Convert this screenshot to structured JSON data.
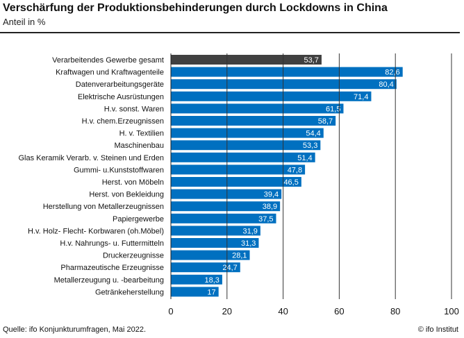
{
  "title": "Verschärfung der Produktionsbehinderungen durch Lockdowns in China",
  "subtitle": "Anteil in %",
  "source": "Quelle: ifo Konjunkturumfragen, Mai 2022.",
  "copyright": "© ifo Institut",
  "colors": {
    "highlight": "#404040",
    "bars": "#0070C0",
    "grid": "#333333"
  },
  "chart_data": {
    "type": "bar",
    "orientation": "horizontal",
    "categories": [
      "Verarbeitendes Gewerbe gesamt",
      "Kraftwagen und Kraftwagenteile",
      "Datenverarbeitungsgeräte",
      "Elektrische Ausrüstungen",
      "H.v. sonst. Waren",
      "H.v. chem.Erzeugnissen",
      "H. v. Textilien",
      "Maschinenbau",
      "Glas  Keramik  Verarb. v. Steinen und Erden",
      "Gummi- u.Kunststoffwaren",
      "Herst. von Möbeln",
      "Herst. von Bekleidung",
      "Herstellung von Metallerzeugnissen",
      "Papiergewerbe",
      "H.v. Holz-  Flecht-  Korbwaren (oh.Möbel)",
      "H.v. Nahrungs- u. Futtermitteln",
      "Druckerzeugnisse",
      "Pharmazeutische Erzeugnisse",
      "Metallerzeugung u. -bearbeitung",
      "Getränkeherstellung"
    ],
    "values": [
      53.7,
      82.6,
      80.4,
      71.4,
      61.5,
      58.7,
      54.4,
      53.3,
      51.4,
      47.8,
      46.5,
      39.4,
      38.9,
      37.5,
      31.9,
      31.3,
      28.1,
      24.7,
      18.3,
      17
    ],
    "labels": [
      "53,7",
      "82,6",
      "80,4",
      "71,4",
      "61,5",
      "58,7",
      "54,4",
      "53,3",
      "51,4",
      "47,8",
      "46,5",
      "39,4",
      "38,9",
      "37,5",
      "31,9",
      "31,3",
      "28,1",
      "24,7",
      "18,3",
      "17"
    ],
    "highlighted_index": 0,
    "xlim": [
      0,
      100
    ],
    "xticks": [
      0,
      20,
      40,
      60,
      80,
      100
    ],
    "xtick_labels": [
      "0",
      "20",
      "40",
      "60",
      "80",
      "100"
    ],
    "grid": "vertical"
  }
}
